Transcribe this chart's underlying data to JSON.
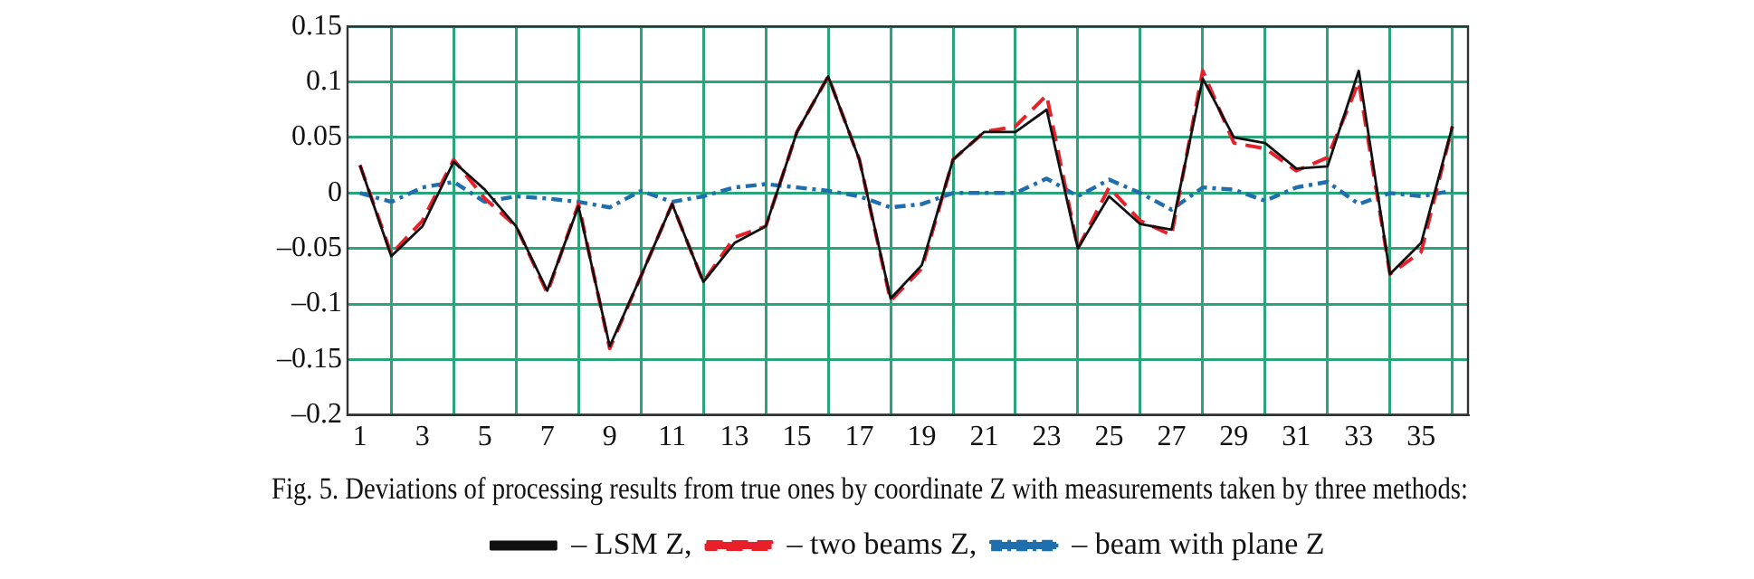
{
  "chart_data": {
    "type": "line",
    "annotations": [
      "Fig. 5. Deviations of processing results from true ones by coordinate Z with measurements taken by three methods:"
    ],
    "x": [
      1,
      2,
      3,
      4,
      5,
      6,
      7,
      8,
      9,
      10,
      11,
      12,
      13,
      14,
      15,
      16,
      17,
      18,
      19,
      20,
      21,
      22,
      23,
      24,
      25,
      26,
      27,
      28,
      29,
      30,
      31,
      32,
      33,
      34,
      35,
      36
    ],
    "xlim": [
      0.6,
      36.5
    ],
    "xticks": [
      1,
      {
        "value": 2,
        "label": null
      },
      3,
      {
        "value": 4,
        "label": null
      },
      5,
      {
        "value": 6,
        "label": null
      },
      7,
      {
        "value": 8,
        "label": null
      },
      9,
      {
        "value": 10,
        "label": null
      },
      11,
      {
        "value": 12,
        "label": null
      },
      13,
      {
        "value": 14,
        "label": null
      },
      15,
      {
        "value": 16,
        "label": null
      },
      17,
      {
        "value": 18,
        "label": null
      },
      19,
      {
        "value": 20,
        "label": null
      },
      21,
      {
        "value": 22,
        "label": null
      },
      23,
      {
        "value": 24,
        "label": null
      },
      25,
      {
        "value": 26,
        "label": null
      },
      27,
      {
        "value": 28,
        "label": null
      },
      29,
      {
        "value": 30,
        "label": null
      },
      31,
      {
        "value": 32,
        "label": null
      },
      33,
      {
        "value": 34,
        "label": null
      },
      35,
      {
        "value": 36,
        "label": null
      }
    ],
    "ylim": [
      -0.2,
      0.15
    ],
    "yticks": [
      {
        "value": -0.2,
        "label": "–0.2"
      },
      {
        "value": -0.15,
        "label": "–0.15"
      },
      {
        "value": -0.1,
        "label": "–0.1"
      },
      {
        "value": -0.05,
        "label": "–0.05"
      },
      0,
      0.05,
      0.1,
      0.15
    ],
    "grid": true,
    "legend": "bottom",
    "marker": "none",
    "series": [
      {
        "name": "– LSM Z,",
        "color": "#111111",
        "line_style": "solid",
        "values": [
          0.025,
          -0.057,
          -0.03,
          0.028,
          0.003,
          -0.03,
          -0.088,
          -0.012,
          -0.138,
          -0.075,
          -0.01,
          -0.08,
          -0.045,
          -0.03,
          0.055,
          0.105,
          0.03,
          -0.095,
          -0.065,
          0.03,
          0.055,
          0.055,
          0.075,
          -0.05,
          -0.003,
          -0.028,
          -0.033,
          0.103,
          0.05,
          0.045,
          0.022,
          0.024,
          0.11,
          -0.073,
          -0.045,
          0.06
        ]
      },
      {
        "name": "– two beams Z,",
        "color": "#e8202a",
        "line_style": "dashed",
        "values": [
          0.025,
          -0.055,
          -0.025,
          0.03,
          -0.005,
          -0.03,
          -0.09,
          -0.01,
          -0.14,
          -0.075,
          -0.01,
          -0.08,
          -0.04,
          -0.03,
          0.055,
          0.105,
          0.03,
          -0.097,
          -0.068,
          0.03,
          0.055,
          0.06,
          0.088,
          -0.05,
          0.005,
          -0.025,
          -0.038,
          0.11,
          0.045,
          0.04,
          0.02,
          0.032,
          0.1,
          -0.073,
          -0.053,
          0.06
        ]
      },
      {
        "name": "– beam with plane Z",
        "color": "#1f6fae",
        "line_style": "dashed",
        "values": [
          0,
          -0.008,
          0.005,
          0.01,
          -0.008,
          -0.003,
          -0.005,
          -0.008,
          -0.013,
          0.002,
          -0.008,
          -0.003,
          0.005,
          0.008,
          0.005,
          0.002,
          -0.003,
          -0.013,
          -0.01,
          0,
          0,
          0,
          0.013,
          -0.003,
          0.012,
          0,
          -0.015,
          0.005,
          0.003,
          -0.007,
          0.005,
          0.01,
          -0.01,
          0,
          -0.003,
          0.002
        ]
      }
    ]
  }
}
